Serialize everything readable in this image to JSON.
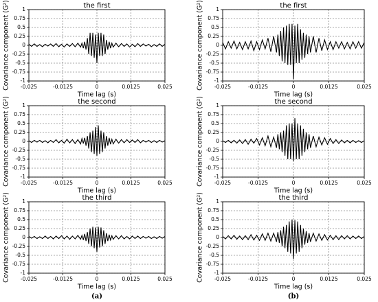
{
  "chart_data": [
    {
      "type": "line",
      "title": "the first",
      "xlabel": "Time lag (s)",
      "ylabel": "Covariance component (G²)",
      "color": "#000000",
      "grid": true,
      "xlim": [
        -0.025,
        0.025
      ],
      "ylim": [
        -1,
        1
      ],
      "xticks": [
        -0.025,
        -0.0125,
        0,
        0.0125,
        0.025
      ],
      "yticks": [
        1,
        0.75,
        0.5,
        0.25,
        0,
        -0.25,
        -0.5,
        -0.75,
        -1
      ],
      "x": [
        -0.025,
        -0.024,
        -0.023,
        -0.022,
        -0.021,
        -0.02,
        -0.019,
        -0.018,
        -0.017,
        -0.016,
        -0.015,
        -0.014,
        -0.013,
        -0.012,
        -0.011,
        -0.01,
        -0.009,
        -0.008,
        -0.007,
        -0.006,
        -0.0055,
        -0.005,
        -0.0045,
        -0.004,
        -0.0035,
        -0.003,
        -0.0025,
        -0.002,
        -0.0015,
        -0.001,
        -0.0005,
        0,
        0.0005,
        0.001,
        0.0015,
        0.002,
        0.0025,
        0.003,
        0.0035,
        0.004,
        0.0045,
        0.005,
        0.0055,
        0.006,
        0.007,
        0.008,
        0.009,
        0.01,
        0.011,
        0.012,
        0.013,
        0.014,
        0.015,
        0.016,
        0.017,
        0.018,
        0.019,
        0.02,
        0.021,
        0.022,
        0.023,
        0.024,
        0.025
      ],
      "values": [
        0.03,
        -0.03,
        0.04,
        -0.03,
        0.02,
        -0.04,
        0.03,
        -0.02,
        0.04,
        -0.03,
        0.05,
        -0.04,
        0.03,
        -0.05,
        0.04,
        -0.03,
        0.05,
        -0.04,
        0.06,
        -0.05,
        0.06,
        -0.08,
        0.1,
        -0.12,
        0.2,
        -0.25,
        0.35,
        -0.3,
        0.35,
        -0.35,
        0.3,
        -0.5,
        0.35,
        -0.3,
        0.35,
        -0.3,
        0.3,
        -0.25,
        0.15,
        -0.12,
        0.1,
        -0.08,
        0.06,
        -0.05,
        0.06,
        -0.04,
        0.05,
        -0.03,
        0.04,
        -0.05,
        0.03,
        -0.04,
        0.05,
        -0.03,
        0.04,
        -0.02,
        0.03,
        -0.04,
        0.02,
        -0.03,
        0.04,
        -0.03,
        0.03
      ]
    },
    {
      "type": "line",
      "title": "the second",
      "xlabel": "Time lag (s)",
      "ylabel": "Covariance component (G²)",
      "color": "#000000",
      "grid": true,
      "xlim": [
        -0.025,
        0.025
      ],
      "ylim": [
        -1,
        1
      ],
      "xticks": [
        -0.025,
        -0.0125,
        0,
        0.0125,
        0.025
      ],
      "yticks": [
        1,
        0.75,
        0.5,
        0.25,
        0,
        -0.25,
        -0.5,
        -0.75,
        -1
      ],
      "x": [
        -0.025,
        -0.024,
        -0.023,
        -0.022,
        -0.021,
        -0.02,
        -0.019,
        -0.018,
        -0.017,
        -0.016,
        -0.015,
        -0.014,
        -0.013,
        -0.012,
        -0.011,
        -0.01,
        -0.009,
        -0.008,
        -0.007,
        -0.006,
        -0.0055,
        -0.005,
        -0.0045,
        -0.004,
        -0.0035,
        -0.003,
        -0.0025,
        -0.002,
        -0.0015,
        -0.001,
        -0.0005,
        0,
        0.0005,
        0.001,
        0.0015,
        0.002,
        0.0025,
        0.003,
        0.0035,
        0.004,
        0.0045,
        0.005,
        0.0055,
        0.006,
        0.007,
        0.008,
        0.009,
        0.01,
        0.011,
        0.012,
        0.013,
        0.014,
        0.015,
        0.016,
        0.017,
        0.018,
        0.019,
        0.02,
        0.021,
        0.022,
        0.023,
        0.024,
        0.025
      ],
      "values": [
        0.02,
        -0.03,
        0.03,
        -0.02,
        0.03,
        -0.03,
        0.02,
        -0.04,
        0.03,
        -0.03,
        0.05,
        -0.04,
        0.03,
        -0.05,
        0.06,
        -0.04,
        0.05,
        -0.06,
        0.05,
        -0.07,
        0.08,
        -0.06,
        0.1,
        -0.12,
        0.15,
        -0.2,
        0.25,
        -0.3,
        0.3,
        -0.35,
        0.4,
        -0.4,
        0.45,
        -0.35,
        0.3,
        -0.3,
        0.25,
        -0.2,
        0.15,
        -0.12,
        0.1,
        -0.08,
        0.06,
        -0.07,
        0.06,
        -0.05,
        0.05,
        -0.04,
        0.05,
        -0.03,
        0.04,
        -0.03,
        0.05,
        -0.04,
        0.03,
        -0.02,
        0.03,
        -0.03,
        0.02,
        -0.03,
        0.03,
        -0.02,
        0.02
      ]
    },
    {
      "type": "line",
      "title": "the third",
      "xlabel": "Time lag (s)",
      "ylabel": "Covariance component (G²)",
      "color": "#000000",
      "grid": true,
      "xlim": [
        -0.025,
        0.025
      ],
      "ylim": [
        -1,
        1
      ],
      "xticks": [
        -0.025,
        -0.0125,
        0,
        0.0125,
        0.025
      ],
      "yticks": [
        1,
        0.75,
        0.5,
        0.25,
        0,
        -0.25,
        -0.5,
        -0.75,
        -1
      ],
      "x": [
        -0.025,
        -0.024,
        -0.023,
        -0.022,
        -0.021,
        -0.02,
        -0.019,
        -0.018,
        -0.017,
        -0.016,
        -0.015,
        -0.014,
        -0.013,
        -0.012,
        -0.011,
        -0.01,
        -0.009,
        -0.008,
        -0.007,
        -0.006,
        -0.0055,
        -0.005,
        -0.0045,
        -0.004,
        -0.0035,
        -0.003,
        -0.0025,
        -0.002,
        -0.0015,
        -0.001,
        -0.0005,
        0,
        0.0005,
        0.001,
        0.0015,
        0.002,
        0.0025,
        0.003,
        0.0035,
        0.004,
        0.0045,
        0.005,
        0.0055,
        0.006,
        0.007,
        0.008,
        0.009,
        0.01,
        0.011,
        0.012,
        0.013,
        0.014,
        0.015,
        0.016,
        0.017,
        0.018,
        0.019,
        0.02,
        0.021,
        0.022,
        0.023,
        0.024,
        0.025
      ],
      "values": [
        0.03,
        -0.02,
        0.03,
        -0.03,
        0.02,
        -0.03,
        0.04,
        -0.03,
        0.03,
        -0.04,
        0.04,
        -0.03,
        0.05,
        -0.04,
        0.04,
        -0.05,
        0.04,
        -0.04,
        0.06,
        -0.05,
        0.06,
        -0.07,
        0.1,
        -0.1,
        0.15,
        -0.18,
        0.25,
        -0.25,
        0.3,
        -0.3,
        0.28,
        -0.4,
        0.3,
        -0.28,
        0.28,
        -0.25,
        0.2,
        -0.18,
        0.12,
        -0.1,
        0.08,
        -0.07,
        0.05,
        -0.05,
        0.05,
        -0.04,
        0.05,
        -0.04,
        0.03,
        -0.04,
        0.04,
        -0.03,
        0.04,
        -0.03,
        0.03,
        -0.02,
        0.03,
        -0.03,
        0.02,
        -0.03,
        0.03,
        -0.02,
        0.03
      ]
    },
    {
      "type": "line",
      "title": "the first",
      "xlabel": "Time lag (s)",
      "ylabel": "Covariance component (G²)",
      "color": "#000000",
      "grid": true,
      "xlim": [
        -0.025,
        0.025
      ],
      "ylim": [
        -1,
        1
      ],
      "xticks": [
        -0.025,
        -0.0125,
        0,
        0.0125,
        0.025
      ],
      "yticks": [
        1,
        0.75,
        0.5,
        0.25,
        0,
        -0.25,
        -0.5,
        -0.75,
        -1
      ],
      "x": [
        -0.025,
        -0.024,
        -0.023,
        -0.022,
        -0.021,
        -0.02,
        -0.019,
        -0.018,
        -0.017,
        -0.016,
        -0.015,
        -0.014,
        -0.013,
        -0.012,
        -0.011,
        -0.01,
        -0.009,
        -0.008,
        -0.007,
        -0.006,
        -0.0055,
        -0.005,
        -0.0045,
        -0.004,
        -0.0035,
        -0.003,
        -0.0025,
        -0.002,
        -0.0015,
        -0.001,
        -0.0005,
        0,
        0.0005,
        0.001,
        0.0015,
        0.002,
        0.0025,
        0.003,
        0.0035,
        0.004,
        0.0045,
        0.005,
        0.0055,
        0.006,
        0.007,
        0.008,
        0.009,
        0.01,
        0.011,
        0.012,
        0.013,
        0.014,
        0.015,
        0.016,
        0.017,
        0.018,
        0.019,
        0.02,
        0.021,
        0.022,
        0.023,
        0.024,
        0.025
      ],
      "values": [
        0.08,
        -0.1,
        0.1,
        -0.08,
        0.12,
        -0.1,
        0.08,
        -0.12,
        0.1,
        -0.1,
        0.12,
        -0.15,
        0.1,
        -0.12,
        0.15,
        -0.1,
        0.2,
        -0.18,
        0.25,
        -0.2,
        0.3,
        -0.3,
        0.4,
        -0.45,
        0.5,
        -0.5,
        0.55,
        -0.55,
        0.6,
        -0.55,
        0.6,
        -0.95,
        0.55,
        -0.5,
        0.6,
        -0.5,
        0.45,
        -0.4,
        0.35,
        -0.35,
        0.3,
        -0.25,
        0.25,
        -0.2,
        0.25,
        -0.2,
        0.2,
        -0.15,
        0.15,
        -0.12,
        0.1,
        -0.12,
        0.1,
        -0.08,
        0.1,
        -0.1,
        0.08,
        -0.1,
        0.1,
        -0.08,
        0.1,
        -0.08,
        0.08
      ]
    },
    {
      "type": "line",
      "title": "the second",
      "xlabel": "Time lag (s)",
      "ylabel": "Covariance component (G²)",
      "color": "#000000",
      "grid": true,
      "xlim": [
        -0.025,
        0.025
      ],
      "ylim": [
        -1,
        1
      ],
      "xticks": [
        -0.025,
        -0.0125,
        0,
        0.0125,
        0.025
      ],
      "yticks": [
        1,
        0.75,
        0.5,
        0.25,
        0,
        -0.25,
        -0.5,
        -0.75,
        -1
      ],
      "x": [
        -0.025,
        -0.024,
        -0.023,
        -0.022,
        -0.021,
        -0.02,
        -0.019,
        -0.018,
        -0.017,
        -0.016,
        -0.015,
        -0.014,
        -0.013,
        -0.012,
        -0.011,
        -0.01,
        -0.009,
        -0.008,
        -0.007,
        -0.006,
        -0.0055,
        -0.005,
        -0.0045,
        -0.004,
        -0.0035,
        -0.003,
        -0.0025,
        -0.002,
        -0.0015,
        -0.001,
        -0.0005,
        0,
        0.0005,
        0.001,
        0.0015,
        0.002,
        0.0025,
        0.003,
        0.0035,
        0.004,
        0.0045,
        0.005,
        0.0055,
        0.006,
        0.007,
        0.008,
        0.009,
        0.01,
        0.011,
        0.012,
        0.013,
        0.014,
        0.015,
        0.016,
        0.017,
        0.018,
        0.019,
        0.02,
        0.021,
        0.022,
        0.023,
        0.024,
        0.025
      ],
      "values": [
        0.02,
        -0.03,
        0.03,
        -0.04,
        0.03,
        -0.05,
        0.04,
        -0.06,
        0.05,
        -0.08,
        0.06,
        -0.05,
        0.08,
        -0.1,
        0.1,
        -0.12,
        0.15,
        -0.15,
        0.12,
        -0.18,
        0.2,
        -0.22,
        0.25,
        -0.3,
        0.3,
        -0.4,
        0.45,
        -0.5,
        0.5,
        -0.5,
        0.5,
        -0.55,
        0.65,
        -0.5,
        0.5,
        -0.5,
        0.45,
        -0.4,
        0.35,
        -0.3,
        0.25,
        -0.22,
        0.2,
        -0.18,
        0.15,
        -0.15,
        0.12,
        -0.1,
        0.1,
        -0.08,
        0.08,
        -0.06,
        0.05,
        -0.06,
        0.04,
        -0.04,
        0.03,
        -0.04,
        0.03,
        -0.03,
        0.02,
        -0.03,
        0.02
      ]
    },
    {
      "type": "line",
      "title": "the third",
      "xlabel": "Time lag (s)",
      "ylabel": "Covariance component (G²)",
      "color": "#000000",
      "grid": true,
      "xlim": [
        -0.025,
        0.025
      ],
      "ylim": [
        -1,
        1
      ],
      "xticks": [
        -0.025,
        -0.0125,
        0,
        0.0125,
        0.025
      ],
      "yticks": [
        1,
        0.75,
        0.5,
        0.25,
        0,
        -0.25,
        -0.5,
        -0.75,
        -1
      ],
      "x": [
        -0.025,
        -0.024,
        -0.023,
        -0.022,
        -0.021,
        -0.02,
        -0.019,
        -0.018,
        -0.017,
        -0.016,
        -0.015,
        -0.014,
        -0.013,
        -0.012,
        -0.011,
        -0.01,
        -0.009,
        -0.008,
        -0.007,
        -0.006,
        -0.0055,
        -0.005,
        -0.0045,
        -0.004,
        -0.0035,
        -0.003,
        -0.0025,
        -0.002,
        -0.0015,
        -0.001,
        -0.0005,
        0,
        0.0005,
        0.001,
        0.0015,
        0.002,
        0.0025,
        0.003,
        0.0035,
        0.004,
        0.0045,
        0.005,
        0.0055,
        0.006,
        0.007,
        0.008,
        0.009,
        0.01,
        0.011,
        0.012,
        0.013,
        0.014,
        0.015,
        0.016,
        0.017,
        0.018,
        0.019,
        0.02,
        0.021,
        0.022,
        0.023,
        0.024,
        0.025
      ],
      "values": [
        0.03,
        -0.04,
        0.05,
        -0.04,
        0.06,
        -0.05,
        0.04,
        -0.06,
        0.05,
        -0.06,
        0.08,
        -0.07,
        0.06,
        -0.08,
        0.1,
        -0.08,
        0.12,
        -0.1,
        0.12,
        -0.12,
        0.15,
        -0.15,
        0.2,
        -0.25,
        0.3,
        -0.3,
        0.35,
        -0.4,
        0.45,
        -0.45,
        0.5,
        -0.6,
        0.48,
        -0.45,
        0.45,
        -0.4,
        0.35,
        -0.3,
        0.25,
        -0.2,
        0.18,
        -0.15,
        0.12,
        -0.12,
        0.12,
        -0.1,
        0.1,
        -0.08,
        0.08,
        -0.07,
        0.06,
        -0.06,
        0.05,
        -0.06,
        0.05,
        -0.04,
        0.05,
        -0.04,
        0.04,
        -0.03,
        0.04,
        -0.03,
        0.03
      ]
    }
  ],
  "panel_labels": [
    "(a)",
    "(b)"
  ]
}
